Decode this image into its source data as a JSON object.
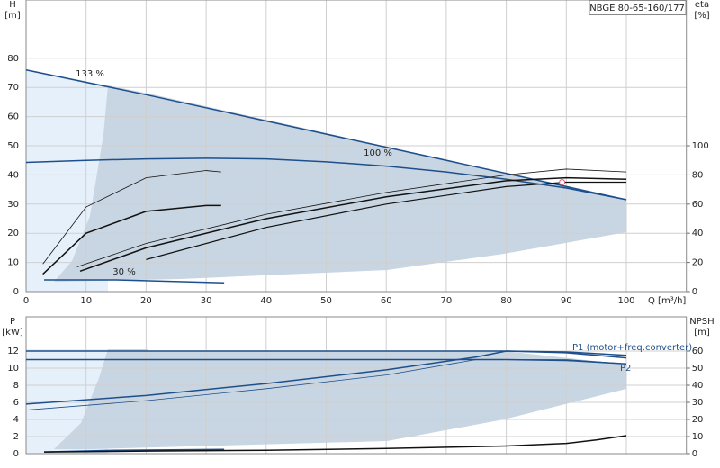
{
  "chart_data": [
    {
      "type": "line",
      "title": "NBGE 80-65-160/177",
      "y_label": "H",
      "y_unit": "[m]",
      "y2_label": "eta",
      "y2_unit": "[%]",
      "x_label": "Q [m³/h]",
      "xlim": [
        0,
        110
      ],
      "xticks": [
        0,
        10,
        20,
        30,
        40,
        50,
        60,
        70,
        80,
        90,
        100
      ],
      "ylim": [
        0,
        100
      ],
      "yticks": [
        0,
        10,
        20,
        30,
        40,
        50,
        60,
        70,
        80
      ],
      "y2lim": [
        0,
        200
      ],
      "y2ticks": [
        0,
        20,
        40,
        60,
        80,
        100
      ],
      "grid": true,
      "show_x_labels": true,
      "annotations": [
        "133 %",
        "100 %",
        "30 %"
      ],
      "series": [
        {
          "color": "#1d4f8c",
          "width": 1.5,
          "axis": "y",
          "x": [
            0,
            20,
            40,
            60,
            80,
            100
          ],
          "values": [
            76,
            67.5,
            58.5,
            49.5,
            40.5,
            31.5
          ]
        },
        {
          "color": "#1d4f8c",
          "width": 1.5,
          "axis": "y",
          "x": [
            0,
            10,
            20,
            30,
            40,
            50,
            60,
            70,
            80,
            90,
            100
          ],
          "values": [
            44.3,
            45,
            45.5,
            45.7,
            45.5,
            44.5,
            43,
            41,
            38.5,
            35.5,
            31.5
          ]
        },
        {
          "color": "#1d4f8c",
          "width": 1.5,
          "axis": "y",
          "x": [
            3,
            15,
            33
          ],
          "values": [
            4,
            4,
            3
          ]
        },
        {
          "color": "#111",
          "width": 0.8,
          "axis": "y2",
          "x": [
            2.8,
            10,
            20,
            30,
            32.5
          ],
          "values": [
            19,
            58,
            78,
            83,
            82
          ]
        },
        {
          "color": "#111",
          "width": 1.5,
          "axis": "y2",
          "x": [
            2.8,
            10,
            20,
            30,
            32.5
          ],
          "values": [
            12,
            40,
            55,
            59,
            59
          ]
        },
        {
          "color": "#111",
          "width": 0.8,
          "axis": "y2",
          "x": [
            8.5,
            20,
            40,
            60,
            80,
            90,
            100
          ],
          "values": [
            17,
            33,
            53,
            68,
            80,
            84,
            82
          ]
        },
        {
          "color": "#111",
          "width": 1.5,
          "axis": "y2",
          "x": [
            9,
            20,
            40,
            60,
            80,
            90,
            100
          ],
          "values": [
            14,
            30,
            50,
            65,
            76,
            78,
            77
          ]
        },
        {
          "color": "#111",
          "width": 1.2,
          "axis": "y2",
          "x": [
            20,
            40,
            60,
            80,
            90,
            100
          ],
          "values": [
            22,
            44,
            60,
            72,
            75,
            75
          ]
        }
      ],
      "duty_point": {
        "x": 89.3,
        "y": 37.5
      }
    },
    {
      "type": "line",
      "y_label": "P",
      "y_unit": "[kW]",
      "y2_label": "NPSH",
      "y2_unit": "[m]",
      "xlim": [
        0,
        110
      ],
      "xticks": [
        0,
        10,
        20,
        30,
        40,
        50,
        60,
        70,
        80,
        90,
        100
      ],
      "ylim": [
        0,
        16
      ],
      "yticks": [
        0,
        2,
        4,
        6,
        8,
        10,
        12
      ],
      "y2lim": [
        0,
        80
      ],
      "y2ticks": [
        0,
        10,
        20,
        30,
        40,
        50,
        60
      ],
      "grid": true,
      "show_x_labels": false,
      "series": [
        {
          "color": "#1d4f8c",
          "width": 1.5,
          "axis": "y",
          "x": [
            0,
            20,
            40,
            60,
            80,
            90,
            100
          ],
          "values": [
            12,
            12,
            12,
            12,
            12,
            11.9,
            11.5
          ]
        },
        {
          "color": "#1d4f8c",
          "width": 1.5,
          "axis": "y",
          "x": [
            0,
            20,
            40,
            60,
            80,
            90,
            100
          ],
          "values": [
            11,
            11,
            11,
            11,
            11,
            10.9,
            10.5
          ]
        },
        {
          "name": "P1 (motor+freq.converter)",
          "color": "#1d4f8c",
          "width": 1.5,
          "axis": "y",
          "x": [
            0,
            20,
            40,
            60,
            75,
            80,
            90,
            100
          ],
          "values": [
            5.8,
            6.8,
            8.2,
            9.8,
            11.3,
            12,
            11.8,
            11.2
          ]
        },
        {
          "name": "P2",
          "color": "#1d4f8c",
          "width": 0.8,
          "axis": "y",
          "x": [
            0,
            20,
            40,
            60,
            75,
            90,
            100
          ],
          "values": [
            5.1,
            6.2,
            7.6,
            9.2,
            11,
            11,
            10.5
          ]
        },
        {
          "color": "#1d4f8c",
          "width": 1.5,
          "axis": "y",
          "x": [
            3,
            15,
            33
          ],
          "values": [
            0.2,
            0.4,
            0.5
          ]
        },
        {
          "color": "#111",
          "width": 1.5,
          "axis": "y2",
          "x": [
            3,
            20,
            40,
            60,
            80,
            90,
            95,
            100
          ],
          "values": [
            1,
            1.5,
            2,
            3,
            4.5,
            6,
            8,
            10.5
          ]
        }
      ]
    }
  ]
}
